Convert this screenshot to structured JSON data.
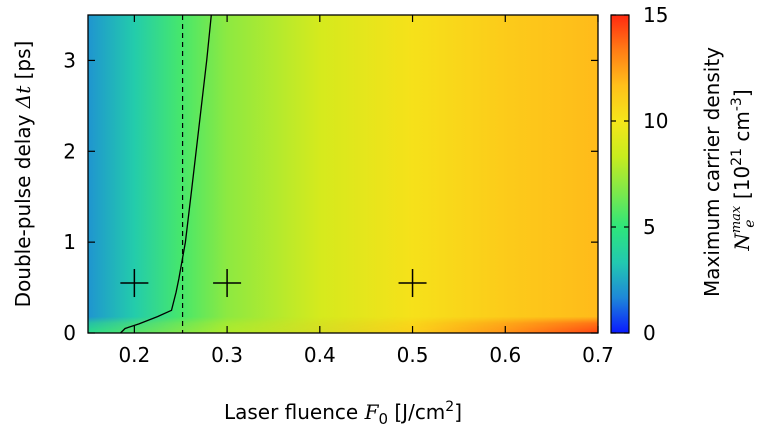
{
  "chart_data": {
    "type": "heatmap",
    "xlabel_prefix": "Laser fluence ",
    "xlabel_symbol": "F",
    "xlabel_sub": "0",
    "xlabel_unit": " [J/cm",
    "xlabel_unit_sup": "2",
    "xlabel_unit_close": "]",
    "ylabel_prefix": "Double-pulse delay ",
    "ylabel_symbol": "Δt",
    "ylabel_unit": " [ps]",
    "colorbar_label_line1": "Maximum carrier density",
    "colorbar_label_symbol": "N",
    "colorbar_label_sub": "e",
    "colorbar_label_sup": "max",
    "colorbar_label_unit_open": " [10",
    "colorbar_label_unit_exp": "21",
    "colorbar_label_unit_mid": " cm",
    "colorbar_label_unit_exp2": "-3",
    "colorbar_label_unit_close": "]",
    "xlim": [
      0.15,
      0.7
    ],
    "ylim": [
      0,
      3.5
    ],
    "zlim": [
      0,
      15
    ],
    "x_ticks": [
      0.2,
      0.3,
      0.4,
      0.5,
      0.6,
      0.7
    ],
    "x_tick_labels": [
      "0.2",
      "0.3",
      "0.4",
      "0.5",
      "0.6",
      "0.7"
    ],
    "y_ticks": [
      0,
      1,
      2,
      3
    ],
    "y_tick_labels": [
      "0",
      "1",
      "2",
      "3"
    ],
    "z_ticks": [
      0,
      5,
      10,
      15
    ],
    "z_tick_labels": [
      "0",
      "5",
      "10",
      "15"
    ],
    "colormap": [
      "#0a1aff",
      "#1e88d8",
      "#22c9b0",
      "#2ee67a",
      "#7ee84a",
      "#c8ec1e",
      "#f5e61a",
      "#ffc01a",
      "#ff7d16",
      "#ff2a10"
    ],
    "density_profile": [
      {
        "x": 0.15,
        "z": 2.0
      },
      {
        "x": 0.2,
        "z": 3.5
      },
      {
        "x": 0.25,
        "z": 5.5
      },
      {
        "x": 0.3,
        "z": 7.0
      },
      {
        "x": 0.4,
        "z": 8.8
      },
      {
        "x": 0.5,
        "z": 10.2
      },
      {
        "x": 0.6,
        "z": 11.2
      },
      {
        "x": 0.7,
        "z": 11.8
      }
    ],
    "low_delay_profile": [
      {
        "x": 0.15,
        "z": 4.5
      },
      {
        "x": 0.3,
        "z": 7.8
      },
      {
        "x": 0.5,
        "z": 11.0
      },
      {
        "x": 0.6,
        "z": 12.8
      },
      {
        "x": 0.7,
        "z": 14.5
      }
    ],
    "threshold_curve": [
      {
        "x": 0.185,
        "y": 0.0
      },
      {
        "x": 0.19,
        "y": 0.05
      },
      {
        "x": 0.205,
        "y": 0.1
      },
      {
        "x": 0.225,
        "y": 0.18
      },
      {
        "x": 0.24,
        "y": 0.25
      },
      {
        "x": 0.245,
        "y": 0.45
      },
      {
        "x": 0.248,
        "y": 0.6
      },
      {
        "x": 0.255,
        "y": 1.0
      },
      {
        "x": 0.262,
        "y": 1.6
      },
      {
        "x": 0.27,
        "y": 2.3
      },
      {
        "x": 0.278,
        "y": 3.0
      },
      {
        "x": 0.283,
        "y": 3.5
      }
    ],
    "dashed_line_x": 0.252,
    "markers": [
      {
        "x": 0.2,
        "y": 0.55
      },
      {
        "x": 0.3,
        "y": 0.55
      },
      {
        "x": 0.5,
        "y": 0.55
      }
    ]
  }
}
